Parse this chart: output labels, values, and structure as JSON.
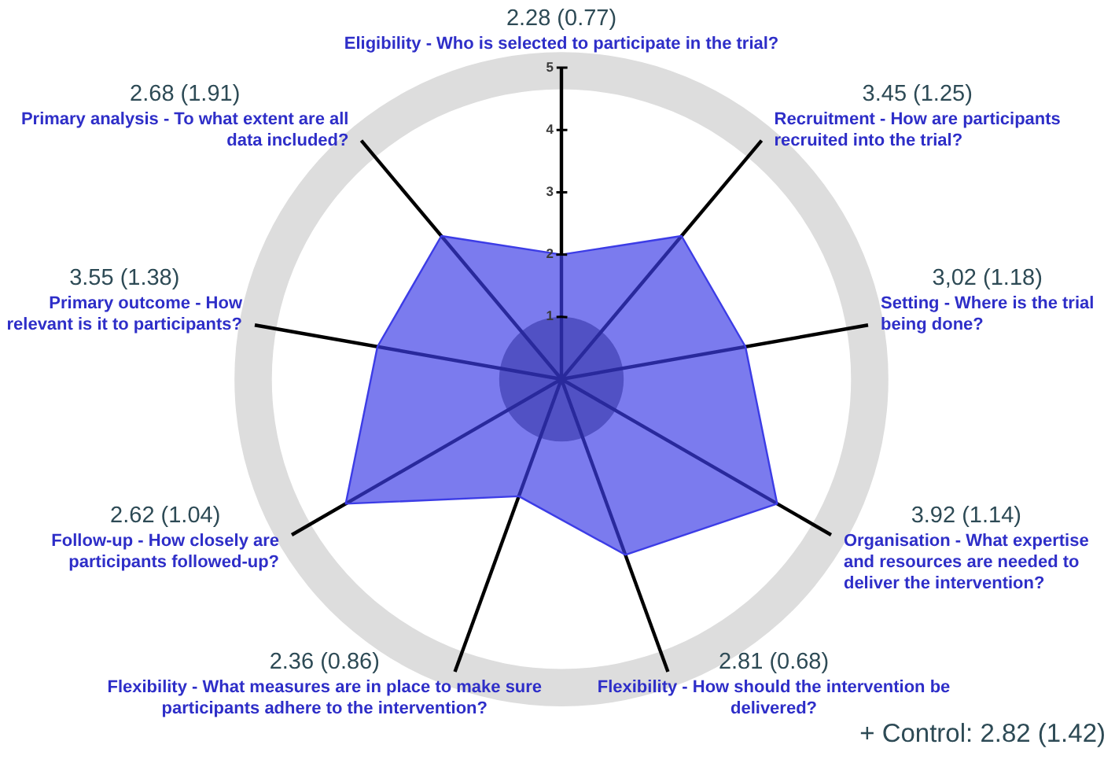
{
  "chart_data": {
    "type": "radar",
    "categories": [
      "Eligibility - Who is selected to participate in the trial?",
      "Recruitment - How are participants recruited into the trial?",
      "Setting - Where is the trial being done?",
      "Organisation - What expertise and resources are needed to deliver the intervention?",
      "Flexibility - How should the intervention be delivered?",
      "Flexibility - What measures are in place to make sure participants adhere to the intervention?",
      "Follow-up - How closely are participants followed-up?",
      "Primary outcome - How relevant is it to participants?",
      "Primary analysis - To what extent are all data included?"
    ],
    "series": [
      {
        "color": "#3c3ce6",
        "values": [
          2,
          3,
          3,
          4,
          3,
          2,
          4,
          3,
          3
        ]
      }
    ],
    "ylim": [
      0,
      5
    ],
    "yticks": [
      1,
      2,
      3,
      4,
      5
    ],
    "grid": false,
    "legend": false,
    "marker": "none",
    "annotations": [
      "2.28 (0.77)",
      "3.45 (1.25)",
      "3,02 (1.18)",
      "3.92 (1.14)",
      "2.81 (0.68)",
      "2.36 (0.86)",
      "2.62 (1.04)",
      "3.55 (1.38)",
      "2.68 (1.91)",
      "+ Control: 2.82 (1.42)"
    ]
  }
}
